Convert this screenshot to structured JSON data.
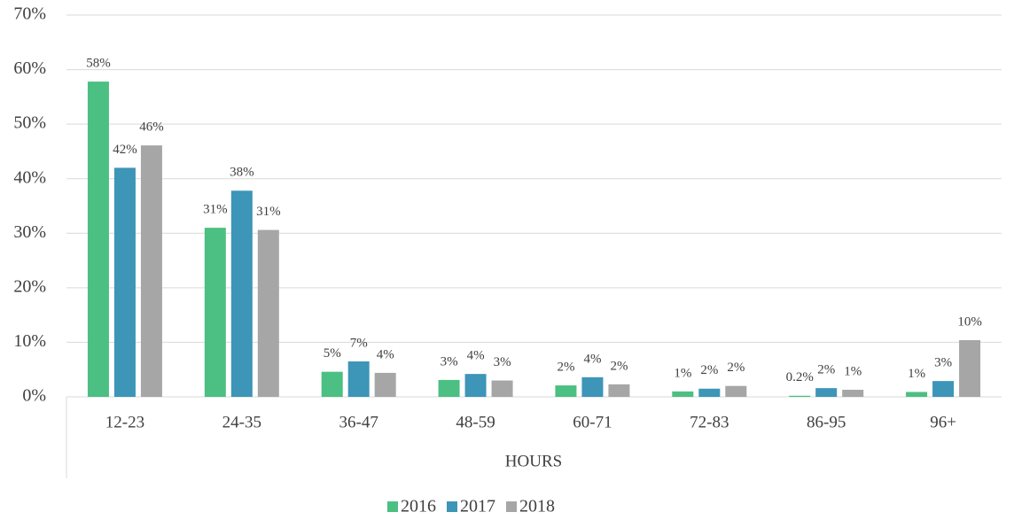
{
  "chart_data": {
    "type": "bar",
    "x_label": "HOURS",
    "categories": [
      "12-23",
      "24-35",
      "36-47",
      "48-59",
      "60-71",
      "72-83",
      "86-95",
      "96+"
    ],
    "series": [
      {
        "name": "2016",
        "color": "#4cbf82",
        "values": [
          57.8,
          31.0,
          4.6,
          3.1,
          2.1,
          1.0,
          0.2,
          0.9
        ],
        "value_labels": [
          "58%",
          "31%",
          "5%",
          "3%",
          "2%",
          "1%",
          "0.2%",
          "1%"
        ]
      },
      {
        "name": "2017",
        "color": "#3d95b8",
        "values": [
          42.0,
          37.8,
          6.5,
          4.2,
          3.6,
          1.5,
          1.6,
          2.9
        ],
        "value_labels": [
          "42%",
          "38%",
          "7%",
          "4%",
          "4%",
          "2%",
          "2%",
          "3%"
        ]
      },
      {
        "name": "2018",
        "color": "#a6a6a6",
        "values": [
          46.1,
          30.6,
          4.4,
          3.0,
          2.3,
          2.0,
          1.3,
          10.4
        ],
        "value_labels": [
          "46%",
          "31%",
          "4%",
          "3%",
          "2%",
          "2%",
          "1%",
          "10%"
        ]
      }
    ],
    "ylim": [
      0,
      70
    ],
    "yticks": [
      {
        "value": 0,
        "label": "0%"
      },
      {
        "value": 10,
        "label": "10%"
      },
      {
        "value": 20,
        "label": "20%"
      },
      {
        "value": 30,
        "label": "30%"
      },
      {
        "value": 40,
        "label": "40%"
      },
      {
        "value": 50,
        "label": "50%"
      },
      {
        "value": 60,
        "label": "60%"
      },
      {
        "value": 70,
        "label": "70%"
      }
    ],
    "grid": true,
    "legend": "bottom"
  }
}
